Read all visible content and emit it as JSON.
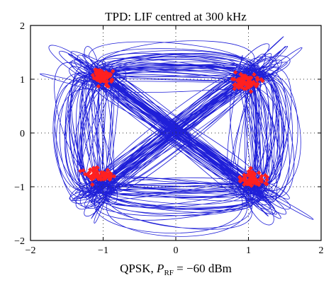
{
  "chart_data": {
    "type": "scatter",
    "title": "TPD: LIF centred at 300 kHz",
    "xlabel": {
      "prefix": "QPSK, ",
      "symbol": "P",
      "subscript": "RF",
      "suffix": " = −60 dBm"
    },
    "ylabel": "",
    "xlim": [
      -2,
      2
    ],
    "ylim": [
      -2,
      2
    ],
    "x_ticks": [
      -2,
      -1,
      0,
      1,
      2
    ],
    "y_ticks": [
      -2,
      -1,
      0,
      1,
      2
    ],
    "x_tick_labels": [
      "−2",
      "−1",
      "0",
      "1",
      "2"
    ],
    "y_tick_labels": [
      "−2",
      "−1",
      "0",
      "1",
      "2"
    ],
    "grid": "dotted",
    "legend": "none",
    "colors": {
      "trajectory": "#1f1fd8",
      "symbols": "#ff2020"
    },
    "series": [
      {
        "kind": "trajectory",
        "description_values": "constellation transition trajectories",
        "x": [
          -1.0,
          1.0,
          1.0,
          -1.0,
          -1.0,
          1.0
        ],
        "y": [
          1.0,
          1.0,
          -1.0,
          -1.0,
          1.0,
          -1.0
        ]
      },
      {
        "kind": "symbols",
        "clusters": [
          {
            "x": -1.0,
            "y": 1.05
          },
          {
            "x": 1.0,
            "y": 0.95
          },
          {
            "x": -1.05,
            "y": -0.8
          },
          {
            "x": 1.05,
            "y": -0.85
          }
        ]
      }
    ]
  }
}
